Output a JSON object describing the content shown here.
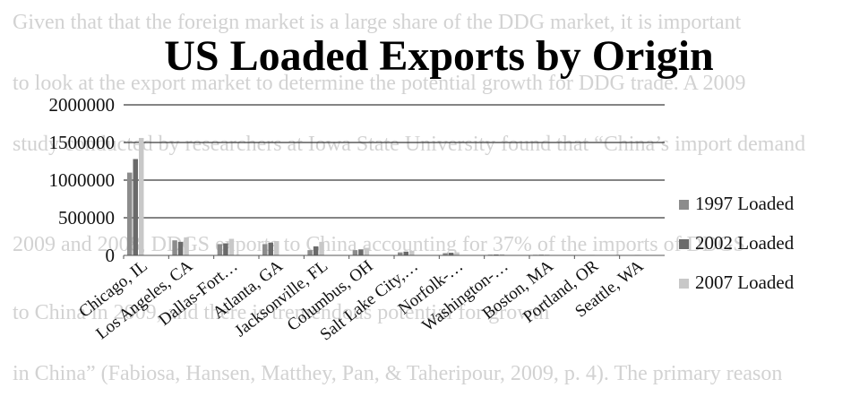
{
  "page_text": [
    "Given that that the foreign market is a large share of the DDG market, it is important",
    "to look at the export market to determine the potential growth for DDG trade. A 2009",
    "study conducted by researchers at Iowa State University found that “China’s import demand",
    "2009 and 2008, DDGS exports to China accounting for 37% of the imports of DDGS",
    "to China in 2009, and there is tremendous potential for growth",
    "in China” (Fabiosa, Hansen, Matthey, Pan, & Taheripour, 2009, p. 4). The primary reason"
  ],
  "chart_data": {
    "type": "bar",
    "title": "US Loaded Exports by Origin",
    "xlabel": "",
    "ylabel": "",
    "ylim": [
      0,
      2000000
    ],
    "yticks": [
      "0",
      "500000",
      "1000000",
      "1500000",
      "2000000"
    ],
    "grid": true,
    "legend_position": "right",
    "categories": [
      "Chicago, IL",
      "Los Angeles, CA",
      "Dallas-Fort…",
      "Atlanta, GA",
      "Jacksonville, FL",
      "Columbus, OH",
      "Salt Lake City,…",
      "Norfolk-…",
      "Washington-…",
      "Boston, MA",
      "Portland, OR",
      "Seattle, WA"
    ],
    "series": [
      {
        "name": "1997 Loaded",
        "color": "#8c8c8c",
        "values": [
          1100000,
          200000,
          150000,
          150000,
          70000,
          70000,
          40000,
          30000,
          10000,
          8000,
          5000,
          5000
        ]
      },
      {
        "name": "2002 Loaded",
        "color": "#6a6a6a",
        "values": [
          1280000,
          180000,
          160000,
          170000,
          120000,
          80000,
          50000,
          35000,
          12000,
          9000,
          6000,
          6000
        ]
      },
      {
        "name": "2007 Loaded",
        "color": "#c8c8c8",
        "values": [
          1560000,
          240000,
          220000,
          190000,
          180000,
          100000,
          60000,
          40000,
          15000,
          10000,
          7000,
          7000
        ]
      }
    ]
  }
}
